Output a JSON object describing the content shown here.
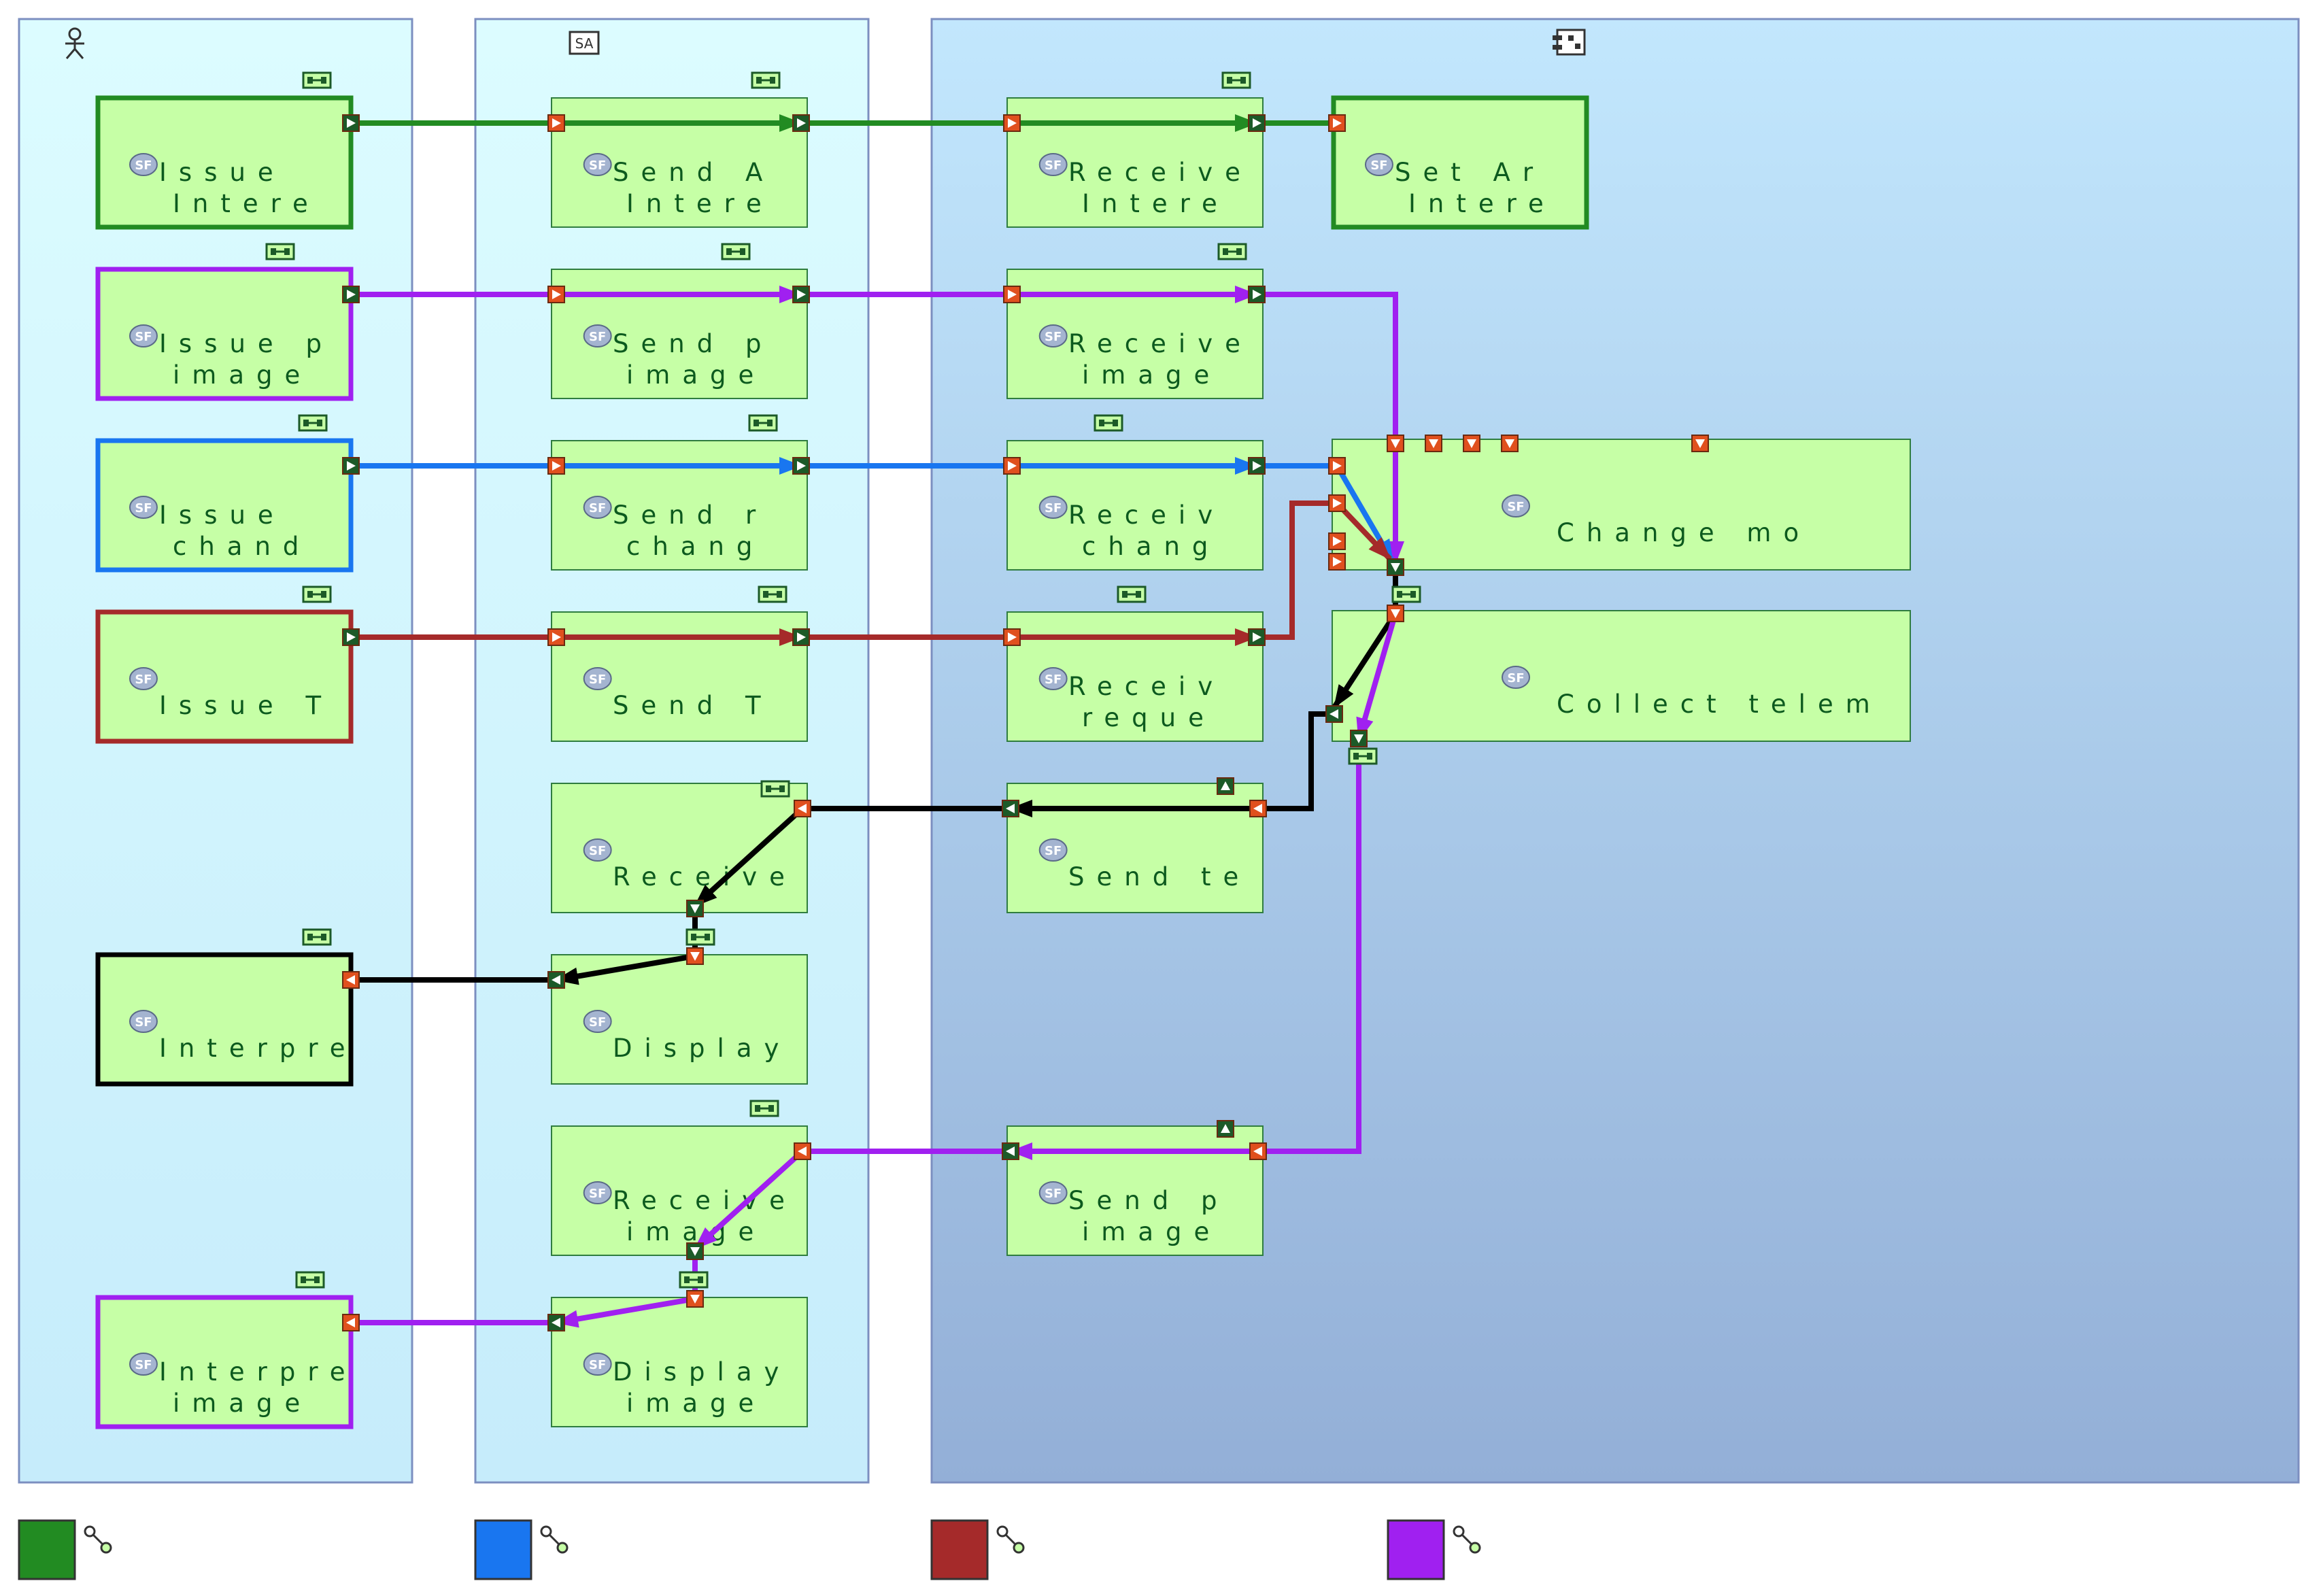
{
  "colors": {
    "green": "#228b22",
    "blue": "#1976f0",
    "red": "#a52a2a",
    "purple": "#a020f0",
    "black": "#000000",
    "function_fill": "#c6ffa6",
    "function_border": "#2f7d3f",
    "port_orange": "#e0501e"
  },
  "lanes": [
    {
      "id": "lane1",
      "icon": "actor-icon"
    },
    {
      "id": "lane2",
      "icon": "system-actor-icon"
    },
    {
      "id": "lane3",
      "icon": "component-icon"
    }
  ],
  "functions": [
    {
      "id": "issue-interest",
      "lines": [
        "Issue",
        "Intere"
      ]
    },
    {
      "id": "send-interest",
      "lines": [
        "Send A",
        "Intere"
      ]
    },
    {
      "id": "receive-interest",
      "lines": [
        "Receive",
        "Intere"
      ]
    },
    {
      "id": "set-interest",
      "lines": [
        "Set Ar",
        "Intere"
      ]
    },
    {
      "id": "issue-image",
      "lines": [
        "Issue p",
        "image"
      ]
    },
    {
      "id": "send-image",
      "lines": [
        "Send p",
        "image"
      ]
    },
    {
      "id": "receive-image",
      "lines": [
        "Receive",
        "image"
      ]
    },
    {
      "id": "issue-change",
      "lines": [
        "Issue",
        "chand"
      ]
    },
    {
      "id": "send-change",
      "lines": [
        "Send r",
        "chang"
      ]
    },
    {
      "id": "receive-change",
      "lines": [
        "Receiv",
        "chang"
      ]
    },
    {
      "id": "change-mode",
      "lines": [
        "Change mo"
      ]
    },
    {
      "id": "issue-tm",
      "lines": [
        "Issue T"
      ]
    },
    {
      "id": "send-tm",
      "lines": [
        "Send T"
      ]
    },
    {
      "id": "receive-request",
      "lines": [
        "Receiv",
        "reque"
      ]
    },
    {
      "id": "collect-telemetry",
      "lines": [
        "Collect telem"
      ]
    },
    {
      "id": "receive-tm",
      "lines": [
        "Receive"
      ]
    },
    {
      "id": "send-tm-data",
      "lines": [
        "Send te"
      ]
    },
    {
      "id": "display-tm",
      "lines": [
        "Display"
      ]
    },
    {
      "id": "interpret-tm",
      "lines": [
        "Interpre"
      ]
    },
    {
      "id": "receive-image-data",
      "lines": [
        "Receive",
        "image"
      ]
    },
    {
      "id": "send-image-data",
      "lines": [
        "Send p",
        "image"
      ]
    },
    {
      "id": "display-image",
      "lines": [
        "Display",
        "image"
      ]
    },
    {
      "id": "interpret-image",
      "lines": [
        "Interpre",
        "image"
      ]
    }
  ],
  "legend": [
    {
      "color": "#228b22"
    },
    {
      "color": "#1976f0"
    },
    {
      "color": "#a52a2a"
    },
    {
      "color": "#a020f0"
    }
  ]
}
